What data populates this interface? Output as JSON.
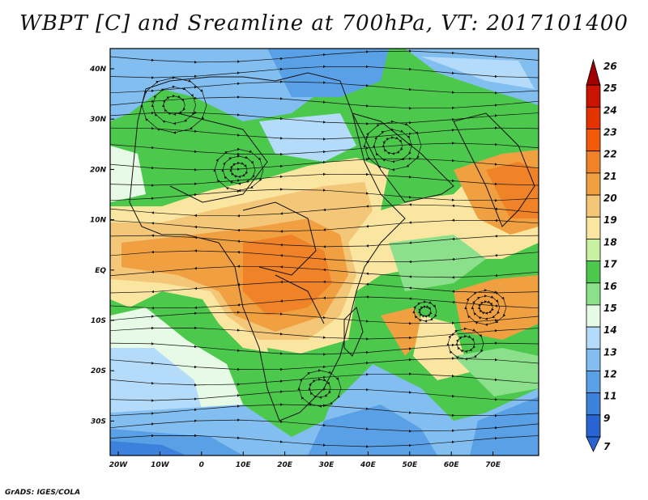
{
  "title": "WBPT [C] and Sreamline at 700hPa, VT: 2017101400",
  "credit": "GrADS: IGES/COLA",
  "map": {
    "lat_labels": [
      "40N",
      "30N",
      "20N",
      "10N",
      "EQ",
      "10S",
      "20S",
      "30S"
    ],
    "lon_labels": [
      "20W",
      "10W",
      "0",
      "10E",
      "20E",
      "30E",
      "40E",
      "50E",
      "60E",
      "70E"
    ],
    "variable": "WBPT",
    "units": "C",
    "level": "700hPa"
  },
  "colorbar": {
    "labels": [
      "26",
      "25",
      "24",
      "23",
      "22",
      "21",
      "20",
      "19",
      "18",
      "17",
      "16",
      "15",
      "14",
      "13",
      "12",
      "11",
      "9",
      "7"
    ],
    "colors": [
      "#a00000",
      "#c81400",
      "#e43200",
      "#f05a0a",
      "#f08228",
      "#f0a040",
      "#f4c678",
      "#fae6a0",
      "#c8f0a0",
      "#4cc84c",
      "#8ce08c",
      "#e6fae6",
      "#b4dcfa",
      "#82bef0",
      "#5aa0e6",
      "#3c82dc",
      "#2864d2"
    ]
  }
}
